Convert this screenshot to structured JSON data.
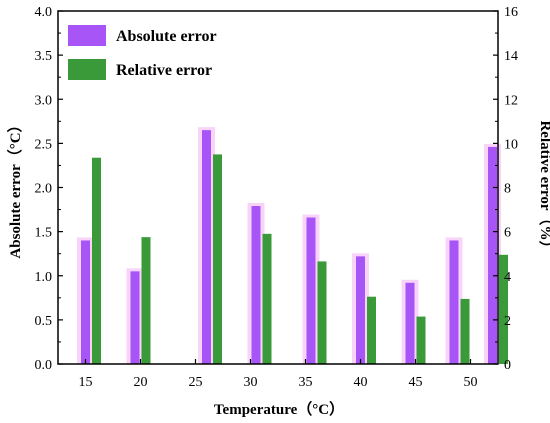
{
  "chart_data": {
    "type": "bar",
    "x_unit": "°C",
    "xlabel": "Temperature（°C）",
    "ylabel_left": "Absolute error（°C）",
    "ylabel_right": "Relative error（%）",
    "x_ticks": [
      15,
      20,
      25,
      30,
      35,
      40,
      45,
      50
    ],
    "y_left_ticks": [
      "0.0",
      "0.5",
      "1.0",
      "1.5",
      "2.0",
      "2.5",
      "3.0",
      "3.5",
      "4.0"
    ],
    "y_right_ticks": [
      "0",
      "2",
      "4",
      "6",
      "8",
      "10",
      "12",
      "14",
      "16"
    ],
    "ylim_left": [
      0,
      4.0
    ],
    "ylim_right": [
      0,
      16
    ],
    "xlim": [
      12.5,
      52.5
    ],
    "legend_placement": "top-left",
    "series": [
      {
        "name": "Absolute error",
        "axis": "left",
        "color": "#a855f7",
        "glow": "#f5c6f5",
        "x": [
          15,
          19.5,
          26,
          30.5,
          35.5,
          40,
          44.5,
          48.5,
          52
        ],
        "values": [
          1.4,
          1.05,
          2.65,
          1.79,
          1.66,
          1.22,
          0.92,
          1.4,
          2.46
        ]
      },
      {
        "name": "Relative error",
        "axis": "right",
        "color": "#3a9a3a",
        "x": [
          16,
          20.5,
          27,
          31.5,
          36.5,
          41,
          45.5,
          49.5,
          53
        ],
        "values": [
          9.35,
          5.75,
          9.5,
          5.9,
          4.65,
          3.05,
          2.15,
          2.95,
          4.95
        ]
      }
    ]
  }
}
